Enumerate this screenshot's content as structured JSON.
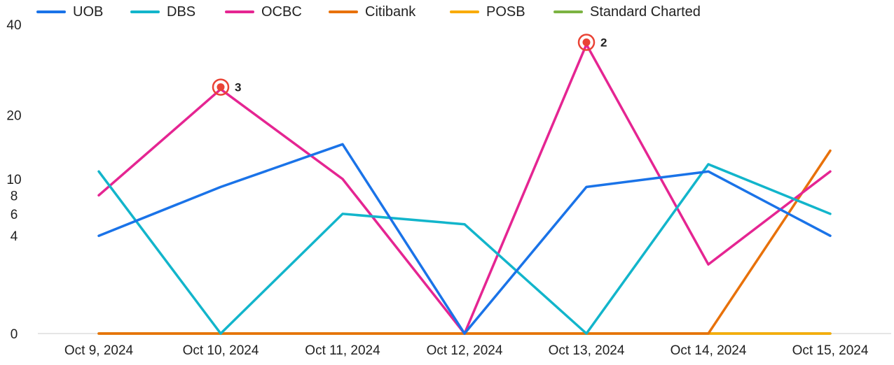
{
  "chart_data": {
    "type": "line",
    "categories": [
      "Oct 9, 2024",
      "Oct 10, 2024",
      "Oct 11, 2024",
      "Oct 12, 2024",
      "Oct 13, 2024",
      "Oct 14, 2024",
      "Oct 15, 2024"
    ],
    "yscale": "sqrt",
    "ylim": [
      0,
      40
    ],
    "yticks": [
      "0",
      "4",
      "6",
      "8",
      "10",
      "20",
      "40"
    ],
    "legend_position": "top",
    "series": [
      {
        "name": "UOB",
        "color": "#1a73e8",
        "values": [
          4,
          9,
          15,
          0,
          9,
          11,
          4
        ]
      },
      {
        "name": "DBS",
        "color": "#12b5cb",
        "values": [
          11,
          0,
          6,
          5,
          0,
          12,
          6
        ]
      },
      {
        "name": "OCBC",
        "color": "#e52592",
        "values": [
          8,
          25,
          10,
          0,
          35,
          2,
          11
        ]
      },
      {
        "name": "Citibank",
        "color": "#e8710a",
        "values": [
          0,
          0,
          0,
          0,
          0,
          0,
          14
        ]
      },
      {
        "name": "POSB",
        "color": "#f9ab00",
        "values": [
          0,
          0,
          0,
          0,
          0,
          0,
          0
        ]
      },
      {
        "name": "Standard Charted",
        "color": "#7cb342",
        "values": [
          0,
          0,
          0,
          0,
          0,
          0,
          0
        ]
      }
    ],
    "annotations": [
      {
        "series": "OCBC",
        "category": "Oct 10, 2024",
        "label": "3",
        "color": "#ea4335"
      },
      {
        "series": "OCBC",
        "category": "Oct 13, 2024",
        "label": "2",
        "color": "#ea4335"
      }
    ]
  }
}
